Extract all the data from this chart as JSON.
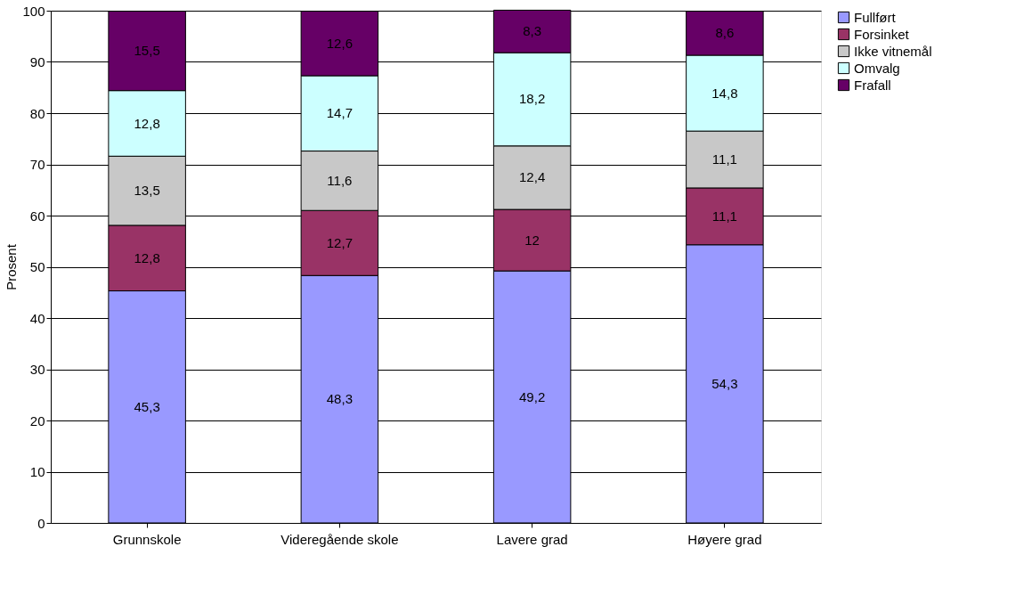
{
  "chart_data": {
    "type": "bar",
    "stacked": true,
    "ylabel": "Prosent",
    "categories": [
      "Grunnskole",
      "Videregående skole",
      "Lavere grad",
      "Høyere grad"
    ],
    "series": [
      {
        "name": "Fullført",
        "color": "#9999ff",
        "values": [
          45.3,
          48.3,
          49.2,
          54.3
        ],
        "value_labels": [
          "45,3",
          "48,3",
          "49,2",
          "54,3"
        ]
      },
      {
        "name": "Forsinket",
        "color": "#993366",
        "values": [
          12.8,
          12.7,
          12,
          11.1
        ],
        "value_labels": [
          "12,8",
          "12,7",
          "12",
          "11,1"
        ]
      },
      {
        "name": "Ikke vitnemål",
        "color": "#c8c8c8",
        "values": [
          13.5,
          11.6,
          12.4,
          11.1
        ],
        "value_labels": [
          "13,5",
          "11,6",
          "12,4",
          "11,1"
        ]
      },
      {
        "name": "Omvalg",
        "color": "#ccffff",
        "values": [
          12.8,
          14.7,
          18.2,
          14.8
        ],
        "value_labels": [
          "12,8",
          "14,7",
          "18,2",
          "14,8"
        ]
      },
      {
        "name": "Frafall",
        "color": "#660066",
        "values": [
          15.5,
          12.6,
          8.3,
          8.6
        ],
        "value_labels": [
          "15,5",
          "12,6",
          "8,3",
          "8,6"
        ]
      }
    ],
    "ylim": [
      0,
      100
    ],
    "yticks": [
      0,
      10,
      20,
      30,
      40,
      50,
      60,
      70,
      80,
      90,
      100
    ],
    "grid": "y",
    "legend": "right"
  }
}
